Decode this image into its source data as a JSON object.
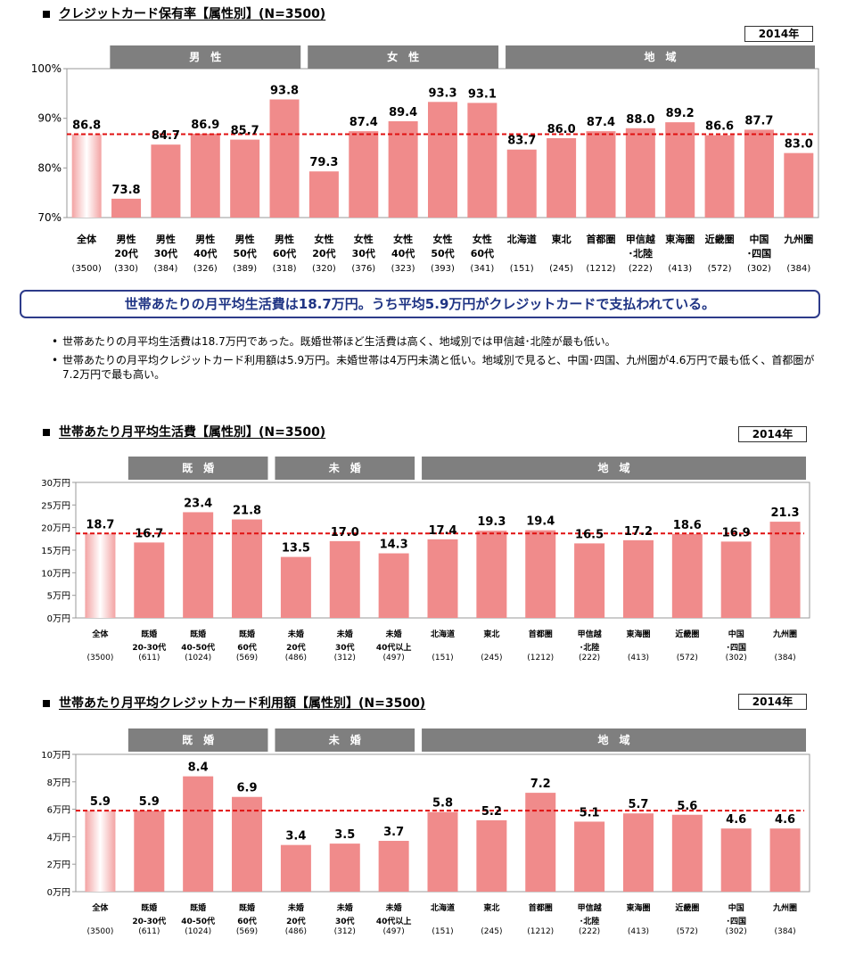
{
  "header": {
    "banner": "世帯あたりの月平均生活費は18.7万円。うち平均5.9万円がクレジットカードで支払われている。",
    "bullets": [
      "世帯あたりの月平均生活費は18.7万円であった。既婚世帯ほど生活費は高く、地域別では甲信越･北陸が最も低い。",
      "世帯あたりの月平均クレジットカード利用額は5.9万円。未婚世帯は4万円未満と低い。地域別で見ると、中国･四国、九州圏が4.6万円で最も低く、首都圏が7.2万円で最も高い。"
    ]
  },
  "chart_data": [
    {
      "type": "bar",
      "title": "クレジットカード保有率【属性別】(N=3500)",
      "year": "2014年",
      "groups": [
        {
          "label": "男　性",
          "from": 1,
          "to": 5
        },
        {
          "label": "女　性",
          "from": 6,
          "to": 10
        },
        {
          "label": "地　域",
          "from": 11,
          "to": 18
        }
      ],
      "categories": [
        [
          "全体"
        ],
        [
          "男性",
          "20代"
        ],
        [
          "男性",
          "30代"
        ],
        [
          "男性",
          "40代"
        ],
        [
          "男性",
          "50代"
        ],
        [
          "男性",
          "60代"
        ],
        [
          "女性",
          "20代"
        ],
        [
          "女性",
          "30代"
        ],
        [
          "女性",
          "40代"
        ],
        [
          "女性",
          "50代"
        ],
        [
          "女性",
          "60代"
        ],
        [
          "北海道"
        ],
        [
          "東北"
        ],
        [
          "首都圏"
        ],
        [
          "甲信越",
          "･北陸"
        ],
        [
          "東海圏"
        ],
        [
          "近畿圏"
        ],
        [
          "中国",
          "･四国"
        ],
        [
          "九州圏"
        ]
      ],
      "n": [
        "(3500)",
        "(330)",
        "(384)",
        "(326)",
        "(389)",
        "(318)",
        "(320)",
        "(376)",
        "(323)",
        "(393)",
        "(341)",
        "(151)",
        "(245)",
        "(1212)",
        "(222)",
        "(413)",
        "(572)",
        "(302)",
        "(384)"
      ],
      "values": [
        86.8,
        73.8,
        84.7,
        86.9,
        85.7,
        93.8,
        79.3,
        87.4,
        89.4,
        93.3,
        93.1,
        83.7,
        86.0,
        87.4,
        88.0,
        89.2,
        86.6,
        87.7,
        83.0
      ],
      "value_labels": [
        "86.8",
        "73.8",
        "84.7",
        "86.9",
        "85.7",
        "93.8",
        "79.3",
        "87.4",
        "89.4",
        "93.3",
        "93.1",
        "83.7",
        "86.0",
        "87.4",
        "88.0",
        "89.2",
        "86.6",
        "87.7",
        "83.0"
      ],
      "ylim": [
        70,
        100
      ],
      "yticks": [
        70,
        80,
        90,
        100
      ],
      "ytick_labels": [
        "70%",
        "80%",
        "90%",
        "100%"
      ],
      "reference_line": 86.8
    },
    {
      "type": "bar",
      "title": "世帯あたり月平均生活費【属性別】(N=3500)",
      "year": "2014年",
      "groups": [
        {
          "label": "既　婚",
          "from": 1,
          "to": 3
        },
        {
          "label": "未　婚",
          "from": 4,
          "to": 6
        },
        {
          "label": "地　域",
          "from": 7,
          "to": 14
        }
      ],
      "categories": [
        [
          "全体"
        ],
        [
          "既婚",
          "20-30代"
        ],
        [
          "既婚",
          "40-50代"
        ],
        [
          "既婚",
          "60代"
        ],
        [
          "未婚",
          "20代"
        ],
        [
          "未婚",
          "30代"
        ],
        [
          "未婚",
          "40代以上"
        ],
        [
          "北海道"
        ],
        [
          "東北"
        ],
        [
          "首都圏"
        ],
        [
          "甲信越",
          "･北陸"
        ],
        [
          "東海圏"
        ],
        [
          "近畿圏"
        ],
        [
          "中国",
          "･四国"
        ],
        [
          "九州圏"
        ]
      ],
      "n": [
        "(3500)",
        "(611)",
        "(1024)",
        "(569)",
        "(486)",
        "(312)",
        "(497)",
        "(151)",
        "(245)",
        "(1212)",
        "(222)",
        "(413)",
        "(572)",
        "(302)",
        "(384)"
      ],
      "values": [
        18.7,
        16.7,
        23.4,
        21.8,
        13.5,
        17.0,
        14.3,
        17.4,
        19.3,
        19.4,
        16.5,
        17.2,
        18.6,
        16.9,
        21.3
      ],
      "value_labels": [
        "18.7",
        "16.7",
        "23.4",
        "21.8",
        "13.5",
        "17.0",
        "14.3",
        "17.4",
        "19.3",
        "19.4",
        "16.5",
        "17.2",
        "18.6",
        "16.9",
        "21.3"
      ],
      "ylim": [
        0,
        30
      ],
      "yticks": [
        0,
        5,
        10,
        15,
        20,
        25,
        30
      ],
      "ytick_labels": [
        "0万円",
        "5万円",
        "10万円",
        "15万円",
        "20万円",
        "25万円",
        "30万円"
      ],
      "reference_line": 18.7
    },
    {
      "type": "bar",
      "title": "世帯あたり月平均クレジットカード利用額【属性別】(N=3500)",
      "year": "2014年",
      "groups": [
        {
          "label": "既　婚",
          "from": 1,
          "to": 3
        },
        {
          "label": "未　婚",
          "from": 4,
          "to": 6
        },
        {
          "label": "地　域",
          "from": 7,
          "to": 14
        }
      ],
      "categories": [
        [
          "全体"
        ],
        [
          "既婚",
          "20-30代"
        ],
        [
          "既婚",
          "40-50代"
        ],
        [
          "既婚",
          "60代"
        ],
        [
          "未婚",
          "20代"
        ],
        [
          "未婚",
          "30代"
        ],
        [
          "未婚",
          "40代以上"
        ],
        [
          "北海道"
        ],
        [
          "東北"
        ],
        [
          "首都圏"
        ],
        [
          "甲信越",
          "･北陸"
        ],
        [
          "東海圏"
        ],
        [
          "近畿圏"
        ],
        [
          "中国",
          "･四国"
        ],
        [
          "九州圏"
        ]
      ],
      "n": [
        "(3500)",
        "(611)",
        "(1024)",
        "(569)",
        "(486)",
        "(312)",
        "(497)",
        "(151)",
        "(245)",
        "(1212)",
        "(222)",
        "(413)",
        "(572)",
        "(302)",
        "(384)"
      ],
      "values": [
        5.9,
        5.9,
        8.4,
        6.9,
        3.4,
        3.5,
        3.7,
        5.8,
        5.2,
        7.2,
        5.1,
        5.7,
        5.6,
        4.6,
        4.6
      ],
      "value_labels": [
        "5.9",
        "5.9",
        "8.4",
        "6.9",
        "3.4",
        "3.5",
        "3.7",
        "5.8",
        "5.2",
        "7.2",
        "5.1",
        "5.7",
        "5.6",
        "4.6",
        "4.6"
      ],
      "ylim": [
        0,
        10
      ],
      "yticks": [
        0,
        2,
        4,
        6,
        8,
        10
      ],
      "ytick_labels": [
        "0万円",
        "2万円",
        "4万円",
        "6万円",
        "8万円",
        "10万円"
      ],
      "reference_line": 5.9
    }
  ],
  "colors": {
    "bar": "#f08b8b",
    "total_bar_edge": "#f3a3a3",
    "reference_line": "#e01010",
    "group_header": "#7f7f7f",
    "banner_border": "#2d3b8a",
    "banner_text": "#1f3484"
  }
}
